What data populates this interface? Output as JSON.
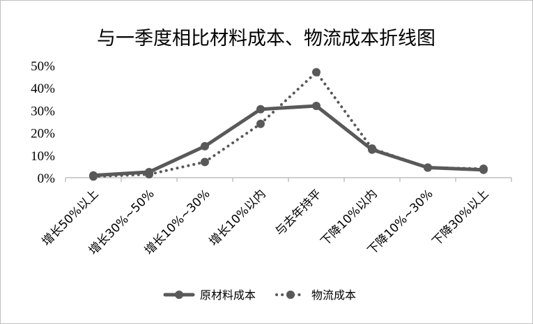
{
  "chart_data": {
    "type": "line",
    "title": "与一季度相比材料成本、物流成本折线图",
    "xlabel": "",
    "ylabel": "",
    "categories": [
      "增长50%以上",
      "增长30%~50%",
      "增长10%~30%",
      "增长10%以内",
      "与去年持平",
      "下降10%以内",
      "下降10%~30%",
      "下降30%以上"
    ],
    "ylim": [
      0,
      50
    ],
    "yticks": [
      "0%",
      "10%",
      "20%",
      "30%",
      "40%",
      "50%"
    ],
    "grid": false,
    "legend": "bottom",
    "series": [
      {
        "name": "原材料成本",
        "style": "solid",
        "color": "#595959",
        "values": [
          1,
          2.5,
          14,
          30.5,
          32,
          12.5,
          4.5,
          3.5
        ]
      },
      {
        "name": "物流成本",
        "style": "dotted",
        "color": "#595959",
        "values": [
          0.5,
          1.5,
          7,
          24,
          47,
          13,
          4.5,
          4
        ]
      }
    ]
  }
}
